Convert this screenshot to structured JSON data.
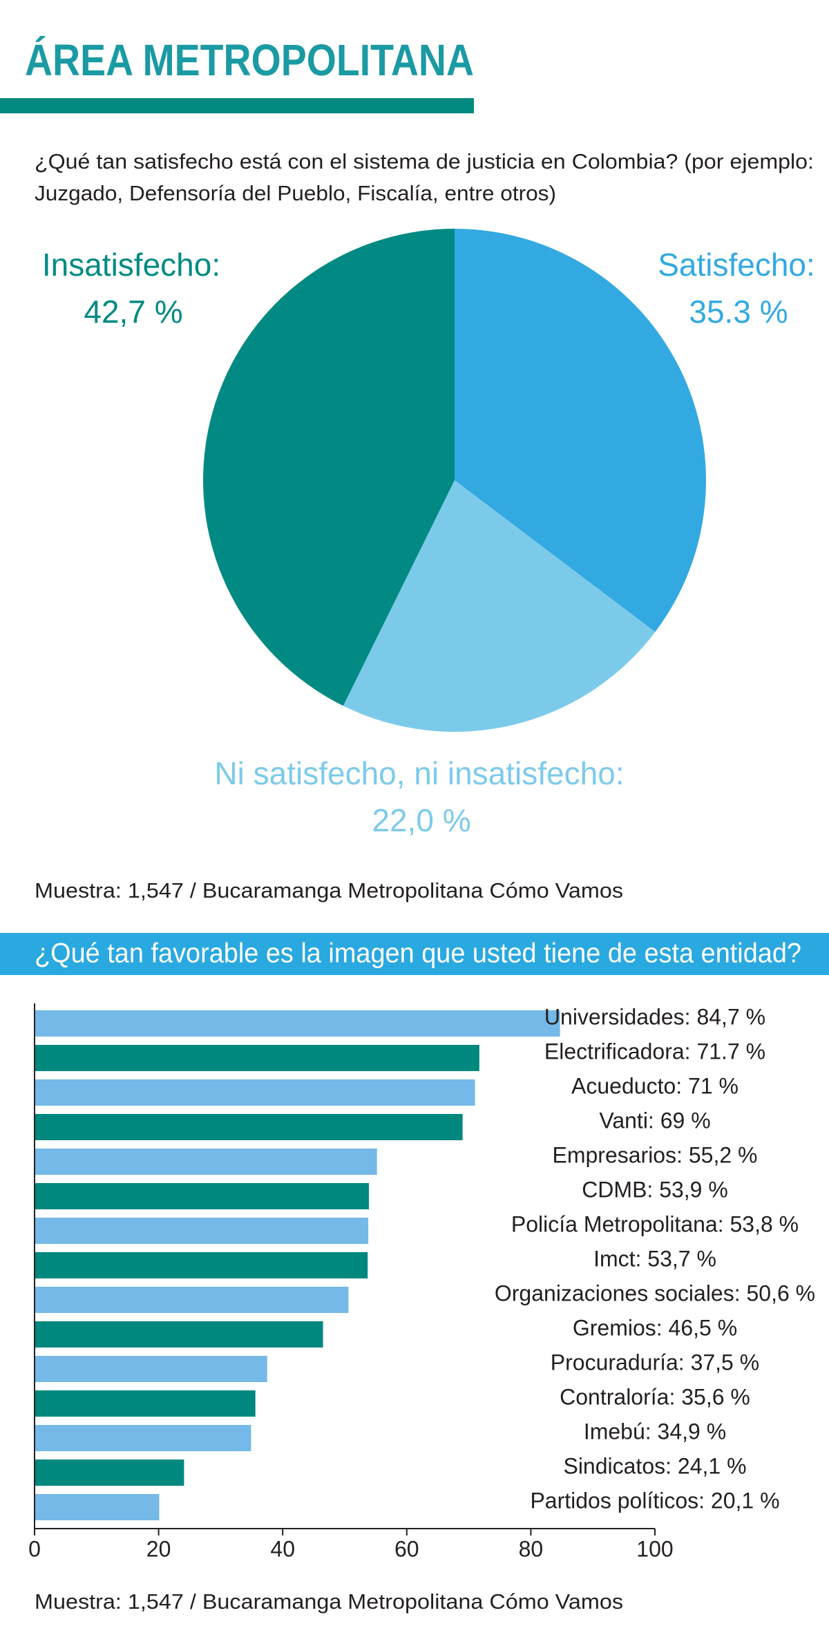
{
  "header": {
    "title": "ÁREA METROPOLITANA"
  },
  "chart_data": [
    {
      "type": "pie",
      "title_lines": [
        "¿Qué tan satisfecho está con el sistema de justicia en Colombia? (por ejemplo:",
        "Juzgado, Defensoría del Pueblo, Fiscalía, entre otros)"
      ],
      "categories": [
        "Satisfecho:",
        "Ni satisfecho, ni insatisfecho:",
        "Insatisfecho:"
      ],
      "values": [
        35.3,
        22.0,
        42.7
      ],
      "value_labels": [
        "35.3 %",
        "22,0 %",
        "42,7 %"
      ],
      "colors": [
        "#33a9e1",
        "#7ccaea",
        "#008a83"
      ],
      "note": "Muestra: 1,547 / Bucaramanga Metropolitana Cómo Vamos"
    },
    {
      "type": "hbar",
      "title": "¿Qué tan favorable es la imagen que usted tiene de esta entidad?",
      "values": [
        84.7,
        71.7,
        71,
        69,
        55.2,
        53.9,
        53.8,
        53.7,
        50.6,
        46.5,
        37.5,
        35.6,
        34.9,
        24.1,
        20.1
      ],
      "value_labels": [
        "Universidades: 84,7 %",
        "Electrificadora: 71.7 %",
        "Acueducto: 71 %",
        "Vanti: 69 %",
        "Empresarios: 55,2 %",
        "CDMB: 53,9 %",
        "Policía Metropolitana: 53,8 %",
        "Imct: 53,7 %",
        "Organizaciones sociales: 50,6 %",
        "Gremios: 46,5 %",
        "Procuraduría: 37,5 %",
        "Contraloría: 35,6 %",
        "Imebú: 34,9 %",
        "Sindicatos: 24,1 %",
        "Partidos políticos: 20,1 %"
      ],
      "colors": [
        "#74b9e7",
        "#00887f"
      ],
      "xlim": [
        0,
        100
      ],
      "xticks": [
        0,
        20,
        40,
        60,
        80,
        100
      ],
      "note": "Muestra: 1,547 / Bucaramanga Metropolitana Cómo Vamos"
    }
  ]
}
